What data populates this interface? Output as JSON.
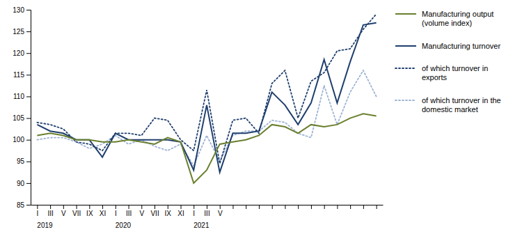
{
  "chart_data": {
    "type": "line",
    "title": "",
    "categories": [
      "I",
      "III",
      "V",
      "VII",
      "IX",
      "XI",
      "I",
      "III",
      "V",
      "VII",
      "IX",
      "XI",
      "I",
      "III",
      "V",
      null,
      null,
      null,
      null,
      null,
      null,
      null,
      null,
      null,
      null,
      null,
      null
    ],
    "series": [
      {
        "name": "Manufacturing output\n(volume index)",
        "color": "#6a7f2e",
        "line_style": "solid",
        "values": [
          101.0,
          101.5,
          101.0,
          100.0,
          100.0,
          99.5,
          99.5,
          100.0,
          99.5,
          99.0,
          100.5,
          99.5,
          90.0,
          93.0,
          99.0,
          99.5,
          100.0,
          101.0,
          103.5,
          103.0,
          101.5,
          103.5,
          103.0,
          103.5,
          105.0,
          106.0,
          105.5
        ]
      },
      {
        "name": "Manufacturing turnover",
        "color": "#1f3f6e",
        "line_style": "solid",
        "values": [
          103.5,
          102.0,
          101.5,
          100.0,
          100.0,
          96.0,
          101.5,
          100.0,
          100.0,
          100.0,
          100.0,
          99.5,
          93.0,
          108.0,
          92.5,
          101.5,
          101.5,
          102.0,
          111.0,
          108.0,
          103.5,
          108.5,
          118.5,
          108.5,
          118.0,
          126.5,
          127.0
        ]
      },
      {
        "name": "of which turnover in\nexports",
        "color": "#1f3f6e",
        "line_style": "dotted",
        "values": [
          104.0,
          103.5,
          102.5,
          99.5,
          99.0,
          97.5,
          101.5,
          101.5,
          101.0,
          105.0,
          104.5,
          100.0,
          97.5,
          111.5,
          94.5,
          104.5,
          105.0,
          101.5,
          113.0,
          116.0,
          105.0,
          113.5,
          115.5,
          120.5,
          121.0,
          125.5,
          129.0
        ]
      },
      {
        "name": "of which turnover in the\ndomestic market",
        "color": "#9db3d4",
        "line_style": "dotted",
        "values": [
          100.0,
          100.5,
          100.5,
          99.5,
          98.0,
          99.0,
          101.0,
          99.0,
          100.0,
          98.5,
          97.5,
          99.0,
          94.0,
          101.0,
          95.0,
          101.0,
          102.0,
          102.0,
          104.5,
          104.0,
          101.5,
          100.5,
          112.5,
          103.5,
          111.0,
          116.0,
          110.0
        ]
      }
    ],
    "annotations": [
      {
        "text": "2019",
        "x": 0
      },
      {
        "text": "2020",
        "x": 6
      },
      {
        "text": "2021",
        "x": 12
      }
    ],
    "ylim": [
      85,
      130
    ],
    "yticks": [
      85,
      90,
      95,
      100,
      105,
      110,
      115,
      120,
      125,
      130
    ],
    "grid": false,
    "legend": "right"
  }
}
